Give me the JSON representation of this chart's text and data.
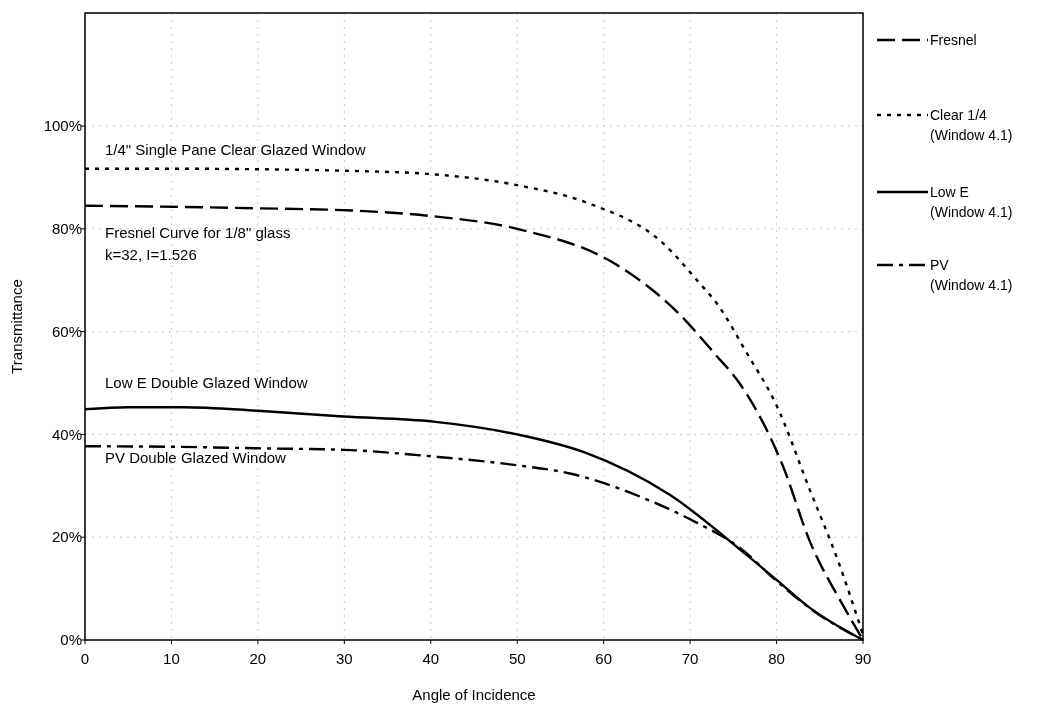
{
  "chart_data": {
    "type": "line",
    "xlabel": "Angle of Incidence",
    "ylabel": "Transmittance",
    "xlim": [
      0,
      90
    ],
    "xticks": [
      0,
      10,
      20,
      30,
      40,
      50,
      60,
      70,
      80,
      90
    ],
    "ylim": [
      0,
      122
    ],
    "yticks": [
      {
        "value": 0,
        "label": "0%"
      },
      {
        "value": 20,
        "label": "20%"
      },
      {
        "value": 40,
        "label": "40%"
      },
      {
        "value": 60,
        "label": "60%"
      },
      {
        "value": 80,
        "label": "80%"
      },
      {
        "value": 100,
        "label": "100%"
      }
    ],
    "grid": true,
    "legend": "right",
    "marker": "none",
    "series": [
      {
        "name": "Fresnel",
        "color": "#000000",
        "line_style": "dashed",
        "x": [
          0,
          10,
          20,
          31.8,
          40,
          50,
          61.5,
          68.4,
          72.9,
          75.7,
          80.7,
          83.9,
          87.6,
          90
        ],
        "values": [
          84.5,
          84.3,
          84,
          83.5,
          82.5,
          80,
          73,
          64,
          55.6,
          50,
          34,
          19,
          7,
          0
        ]
      },
      {
        "name": "Clear 1/4 (Window 4.1)",
        "color": "#000000",
        "line_style": "dotted",
        "x": [
          0,
          10,
          20,
          30,
          39.6,
          50,
          58.2,
          67,
          70.8,
          73.3,
          76.5,
          79.9,
          83.9,
          87.2,
          90
        ],
        "values": [
          91.7,
          91.7,
          91.6,
          91.3,
          90.7,
          88.5,
          85,
          77,
          70,
          65,
          56,
          46,
          29,
          15,
          1
        ]
      },
      {
        "name": "Low E (Window 4.1)",
        "color": "#000000",
        "line_style": "solid",
        "x": [
          0,
          5,
          11.4,
          20,
          29.9,
          40.3,
          50,
          57.8,
          67.6,
          76.5,
          80,
          83.9,
          90
        ],
        "values": [
          44.9,
          45.3,
          45.3,
          44.6,
          43.5,
          42.5,
          40,
          36.5,
          28.3,
          16.6,
          11.7,
          6.2,
          0
        ]
      },
      {
        "name": "PV (Window 4.1)",
        "color": "#000000",
        "line_style": "dashdot",
        "x": [
          0,
          10,
          20,
          30,
          40.3,
          50,
          56.1,
          65.5,
          70.8,
          75.7,
          80,
          84,
          90
        ],
        "values": [
          37.7,
          37.6,
          37.3,
          37,
          35.7,
          34,
          32.4,
          27,
          22.8,
          18,
          11.5,
          6,
          0
        ]
      }
    ],
    "annotations": [
      "1/4\" Single Pane Clear Glazed Window",
      "Fresnel Curve for 1/8\" glass",
      "k=32, I=1.526",
      "Low E Double Glazed Window",
      "PV Double Glazed Window"
    ]
  }
}
